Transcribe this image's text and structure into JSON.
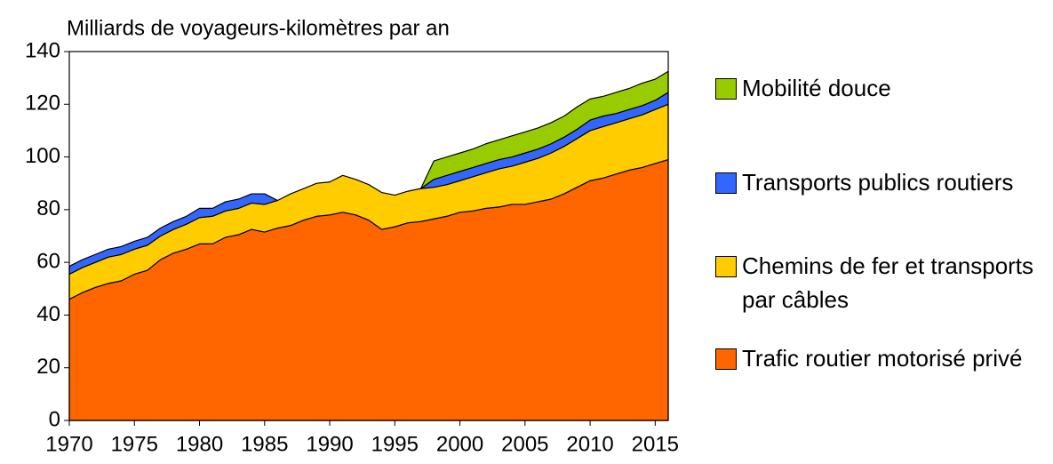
{
  "chart_data": {
    "type": "stacked_area",
    "ylabel": "Milliards de voyageurs-kilomètres par an",
    "x": [
      1970,
      1971,
      1972,
      1973,
      1974,
      1975,
      1976,
      1977,
      1978,
      1979,
      1980,
      1981,
      1982,
      1983,
      1984,
      1985,
      1986,
      1987,
      1988,
      1989,
      1990,
      1991,
      1992,
      1993,
      1994,
      1995,
      1996,
      1997,
      1998,
      1999,
      2000,
      2001,
      2002,
      2003,
      2004,
      2005,
      2006,
      2007,
      2008,
      2009,
      2010,
      2011,
      2012,
      2013,
      2014,
      2015,
      2016
    ],
    "series": [
      {
        "name": "Trafic routier motorisé privé",
        "color": "#ff6600",
        "values": [
          46,
          48.5,
          50.5,
          52,
          53,
          55.5,
          57,
          61,
          63.5,
          65,
          67,
          67,
          69.5,
          70.5,
          72.5,
          71.5,
          73,
          74,
          76,
          77.5,
          78,
          79,
          78,
          76,
          72.5,
          73.5,
          75,
          75.5,
          76.5,
          77.5,
          79,
          79.5,
          80.5,
          81,
          82,
          82,
          83,
          84,
          86,
          88.5,
          91,
          92,
          93.5,
          95,
          96,
          97.5,
          99
        ]
      },
      {
        "name": "Chemins de fer et transports par câbles",
        "color": "#ffcc00",
        "values": [
          9.5,
          9.5,
          9.5,
          10,
          10,
          9.5,
          9.5,
          9,
          9,
          9.5,
          10,
          10.5,
          10,
          10,
          10,
          10.5,
          10.5,
          12,
          12,
          12.5,
          12.5,
          14,
          13.5,
          13.5,
          14,
          12,
          12,
          12.5,
          12,
          12,
          12,
          13,
          13.5,
          14.5,
          14.5,
          16,
          16.5,
          17.5,
          18,
          18.5,
          19,
          19.5,
          19.5,
          19.5,
          20,
          20.5,
          21
        ]
      },
      {
        "name": "Transports publics routiers",
        "color": "#3366ff",
        "values": [
          3,
          3,
          3,
          3,
          3,
          3,
          3,
          3,
          3,
          3,
          3.5,
          3,
          3.5,
          3.5,
          3.5,
          4,
          0,
          null,
          null,
          null,
          null,
          null,
          null,
          null,
          null,
          null,
          null,
          0,
          3,
          3.5,
          3.5,
          3.5,
          3.5,
          3.5,
          3.5,
          3.5,
          3.5,
          3.5,
          3.5,
          3.5,
          4,
          4,
          3.5,
          3.5,
          3.5,
          3.5,
          4.5
        ]
      },
      {
        "name": "Mobilité douce",
        "color": "#99cc00",
        "values": [
          null,
          null,
          null,
          null,
          null,
          null,
          null,
          null,
          null,
          null,
          null,
          null,
          null,
          null,
          null,
          null,
          null,
          null,
          null,
          null,
          null,
          null,
          null,
          null,
          null,
          null,
          null,
          0,
          7,
          7,
          7,
          7,
          7.5,
          7.5,
          8,
          8,
          8,
          8,
          8,
          8.5,
          8,
          7.5,
          8,
          8,
          8.5,
          8,
          8
        ]
      }
    ],
    "xlim": [
      1970,
      2016
    ],
    "xticks": [
      1970,
      1975,
      1980,
      1985,
      1990,
      1995,
      2000,
      2005,
      2010,
      2015
    ],
    "ylim": [
      0,
      140
    ],
    "yticks": [
      0,
      20,
      40,
      60,
      80,
      100,
      120,
      140
    ],
    "legend": "right"
  }
}
